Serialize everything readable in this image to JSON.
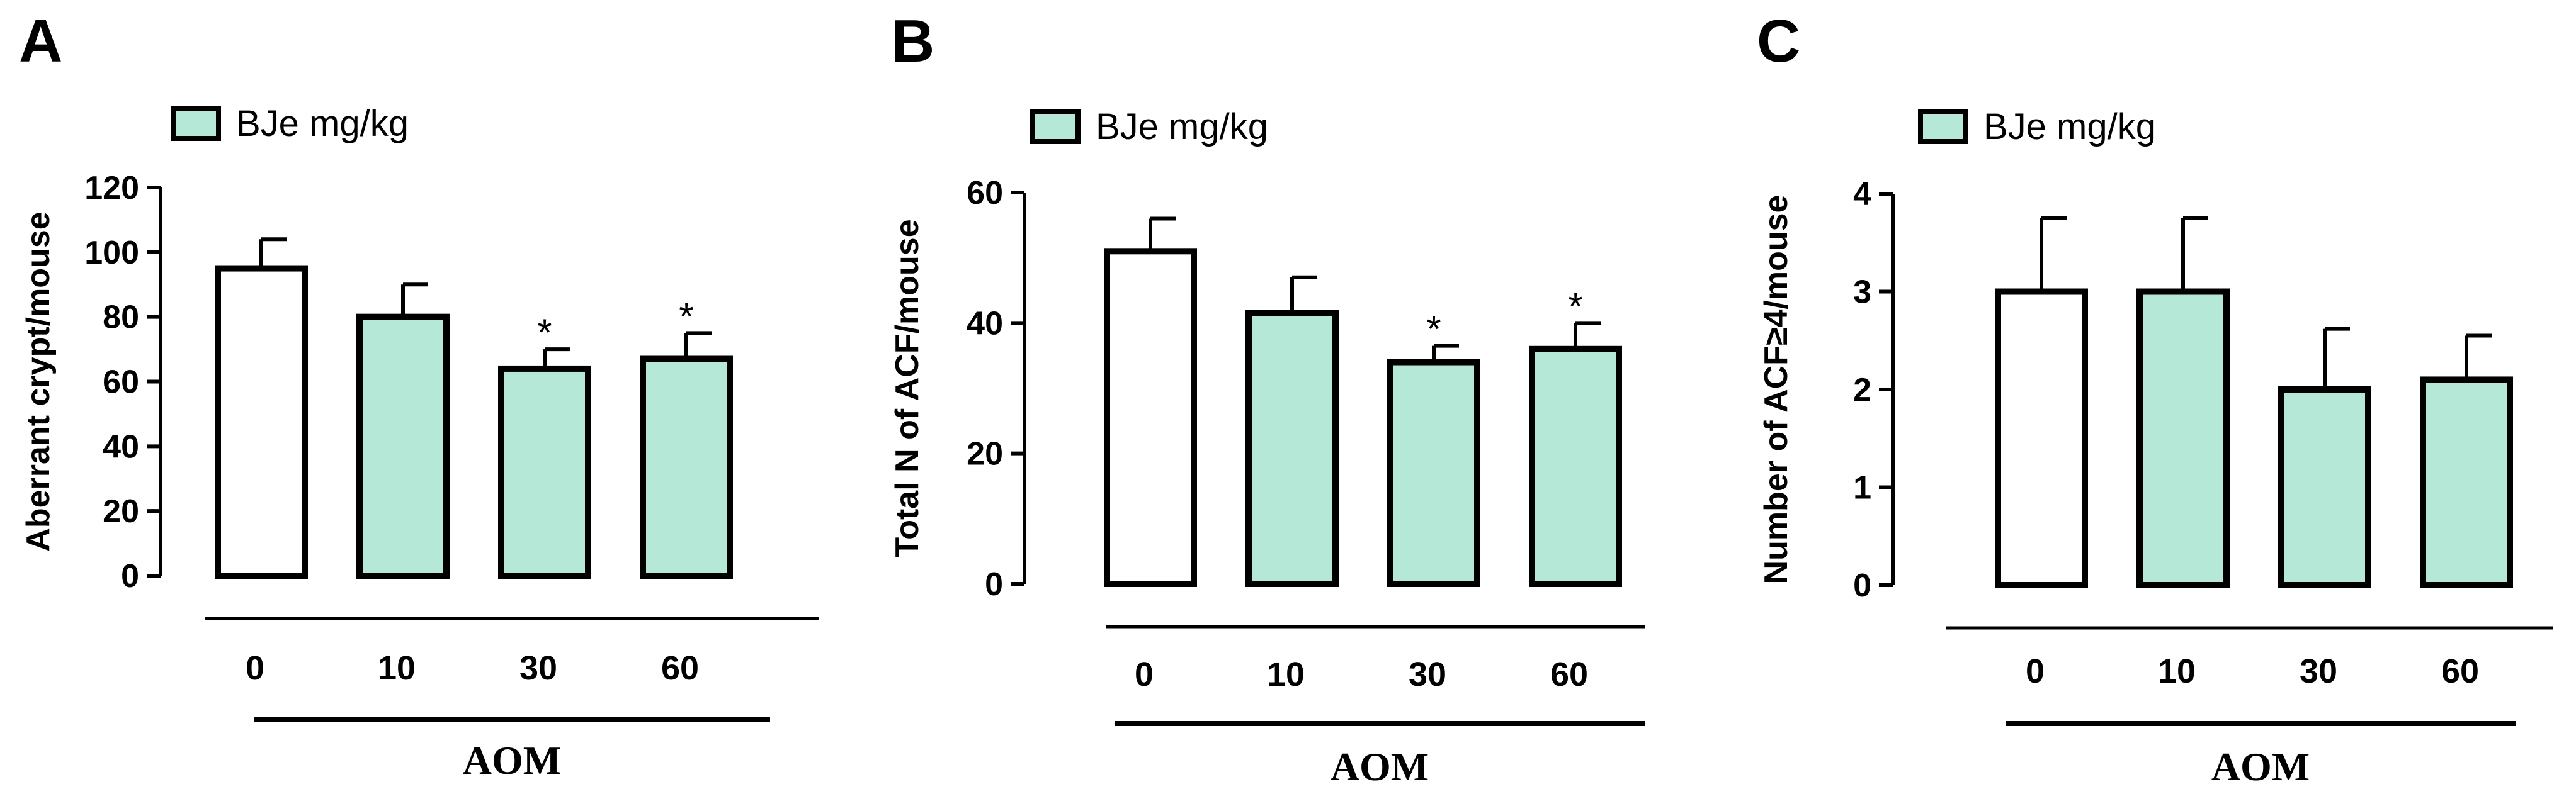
{
  "colors": {
    "fill": "#b5e8d6",
    "control_fill": "#ffffff",
    "stroke": "#000000"
  },
  "chart_data": [
    {
      "type": "bar",
      "panel": "A",
      "categories": [
        "0",
        "10",
        "30",
        "60"
      ],
      "values": [
        95,
        80,
        64,
        67
      ],
      "errors": [
        9,
        10,
        6,
        8
      ],
      "significance": [
        "",
        "",
        "*",
        "*"
      ],
      "fills": [
        "#ffffff",
        "#b5e8d6",
        "#b5e8d6",
        "#b5e8d6"
      ],
      "legend": "BJe mg/kg",
      "ylabel": "Aberrant crypt/mouse",
      "yticks": [
        "0",
        "20",
        "40",
        "60",
        "80",
        "100",
        "120"
      ],
      "ylim": [
        0,
        120
      ],
      "group_label": "AOM"
    },
    {
      "type": "bar",
      "panel": "B",
      "categories": [
        "0",
        "10",
        "30",
        "60"
      ],
      "values": [
        51,
        41.5,
        34,
        36
      ],
      "errors": [
        5,
        5.5,
        2.5,
        4
      ],
      "significance": [
        "",
        "",
        "*",
        "*"
      ],
      "fills": [
        "#ffffff",
        "#b5e8d6",
        "#b5e8d6",
        "#b5e8d6"
      ],
      "legend": "BJe mg/kg",
      "ylabel": "Total N of ACF/mouse",
      "yticks": [
        "0",
        "20",
        "40",
        "60"
      ],
      "ylim": [
        0,
        60
      ],
      "group_label": "AOM"
    },
    {
      "type": "bar",
      "panel": "C",
      "categories": [
        "0",
        "10",
        "30",
        "60"
      ],
      "values": [
        3,
        3,
        2,
        2.1
      ],
      "errors": [
        0.75,
        0.75,
        0.62,
        0.45
      ],
      "significance": [
        "",
        "",
        "",
        ""
      ],
      "fills": [
        "#ffffff",
        "#b5e8d6",
        "#b5e8d6",
        "#b5e8d6"
      ],
      "legend": "BJe mg/kg",
      "ylabel": "Number of ACF≥4/mouse",
      "yticks": [
        "0",
        "1",
        "2",
        "3",
        "4"
      ],
      "ylim": [
        0,
        4
      ],
      "group_label": "AOM"
    }
  ]
}
